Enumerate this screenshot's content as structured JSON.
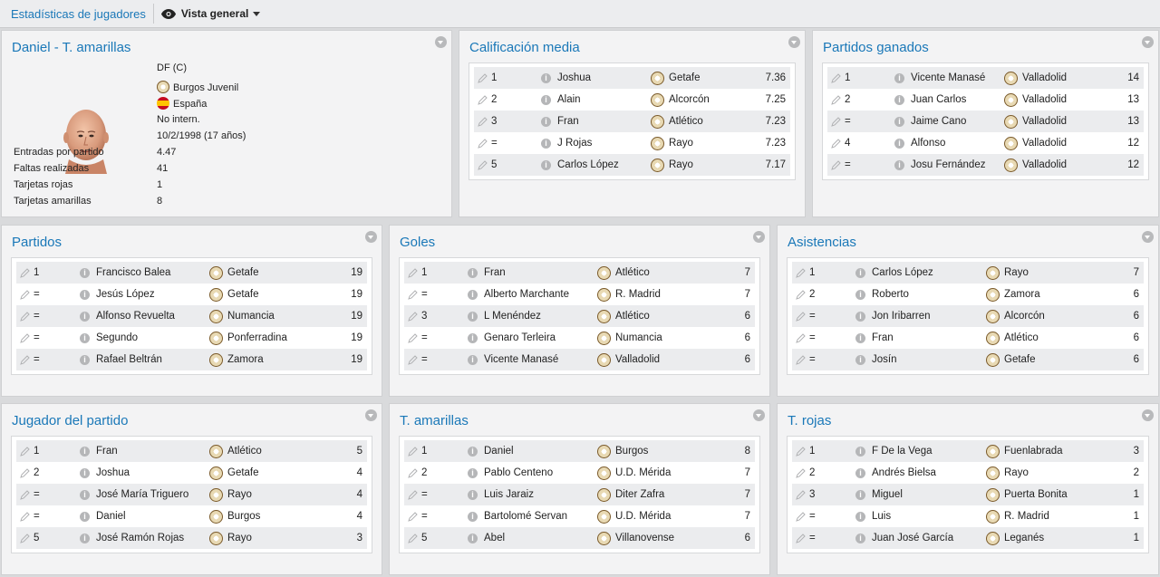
{
  "topbar": {
    "breadcrumb": "Estadísticas de jugadores",
    "view_label": "Vista general"
  },
  "profile": {
    "title": "Daniel - T. amarillas",
    "position": "DF (C)",
    "club": "Burgos Juvenil",
    "nation": "España",
    "intl": "No intern.",
    "dob": "10/2/1998 (17 años)",
    "stats": [
      {
        "label": "Entradas por partido",
        "value": "4.47"
      },
      {
        "label": "Faltas realizadas",
        "value": "41"
      },
      {
        "label": "Tarjetas rojas",
        "value": "1"
      },
      {
        "label": "Tarjetas amarillas",
        "value": "8"
      }
    ]
  },
  "panels": {
    "calificacion": {
      "title": "Calificación media",
      "rows": [
        {
          "rank": "1",
          "player": "Joshua",
          "team": "Getafe",
          "value": "7.36"
        },
        {
          "rank": "2",
          "player": "Alain",
          "team": "Alcorcón",
          "value": "7.25"
        },
        {
          "rank": "3",
          "player": "Fran",
          "team": "Atlético",
          "value": "7.23"
        },
        {
          "rank": "=",
          "player": "J Rojas",
          "team": "Rayo",
          "value": "7.23"
        },
        {
          "rank": "5",
          "player": "Carlos López",
          "team": "Rayo",
          "value": "7.17"
        }
      ]
    },
    "ganados": {
      "title": "Partidos ganados",
      "rows": [
        {
          "rank": "1",
          "player": "Vicente Manasé",
          "team": "Valladolid",
          "value": "14"
        },
        {
          "rank": "2",
          "player": "Juan Carlos",
          "team": "Valladolid",
          "value": "13"
        },
        {
          "rank": "=",
          "player": "Jaime Cano",
          "team": "Valladolid",
          "value": "13"
        },
        {
          "rank": "4",
          "player": "Alfonso",
          "team": "Valladolid",
          "value": "12"
        },
        {
          "rank": "=",
          "player": "Josu Fernández",
          "team": "Valladolid",
          "value": "12"
        }
      ]
    },
    "partidos": {
      "title": "Partidos",
      "rows": [
        {
          "rank": "1",
          "player": "Francisco Balea",
          "team": "Getafe",
          "value": "19"
        },
        {
          "rank": "=",
          "player": "Jesús López",
          "team": "Getafe",
          "value": "19"
        },
        {
          "rank": "=",
          "player": "Alfonso Revuelta",
          "team": "Numancia",
          "value": "19"
        },
        {
          "rank": "=",
          "player": "Segundo",
          "team": "Ponferradina",
          "value": "19"
        },
        {
          "rank": "=",
          "player": "Rafael Beltrán",
          "team": "Zamora",
          "value": "19"
        }
      ]
    },
    "goles": {
      "title": "Goles",
      "rows": [
        {
          "rank": "1",
          "player": "Fran",
          "team": "Atlético",
          "value": "7"
        },
        {
          "rank": "=",
          "player": "Alberto Marchante",
          "team": "R. Madrid",
          "value": "7"
        },
        {
          "rank": "3",
          "player": "L Menéndez",
          "team": "Atlético",
          "value": "6"
        },
        {
          "rank": "=",
          "player": "Genaro Terleira",
          "team": "Numancia",
          "value": "6"
        },
        {
          "rank": "=",
          "player": "Vicente Manasé",
          "team": "Valladolid",
          "value": "6"
        }
      ]
    },
    "asistencias": {
      "title": "Asistencias",
      "rows": [
        {
          "rank": "1",
          "player": "Carlos López",
          "team": "Rayo",
          "value": "7"
        },
        {
          "rank": "2",
          "player": "Roberto",
          "team": "Zamora",
          "value": "6"
        },
        {
          "rank": "=",
          "player": "Jon Iribarren",
          "team": "Alcorcón",
          "value": "6"
        },
        {
          "rank": "=",
          "player": "Fran",
          "team": "Atlético",
          "value": "6"
        },
        {
          "rank": "=",
          "player": "Josín",
          "team": "Getafe",
          "value": "6"
        }
      ]
    },
    "jugador": {
      "title": "Jugador del partido",
      "rows": [
        {
          "rank": "1",
          "player": "Fran",
          "team": "Atlético",
          "value": "5"
        },
        {
          "rank": "2",
          "player": "Joshua",
          "team": "Getafe",
          "value": "4"
        },
        {
          "rank": "=",
          "player": "José María Triguero",
          "team": "Rayo",
          "value": "4"
        },
        {
          "rank": "=",
          "player": "Daniel",
          "team": "Burgos",
          "value": "4"
        },
        {
          "rank": "5",
          "player": "José Ramón Rojas",
          "team": "Rayo",
          "value": "3"
        }
      ]
    },
    "amarillas": {
      "title": "T. amarillas",
      "rows": [
        {
          "rank": "1",
          "player": "Daniel",
          "team": "Burgos",
          "value": "8"
        },
        {
          "rank": "2",
          "player": "Pablo Centeno",
          "team": "U.D. Mérida",
          "value": "7"
        },
        {
          "rank": "=",
          "player": "Luis Jaraiz",
          "team": "Diter Zafra",
          "value": "7"
        },
        {
          "rank": "=",
          "player": "Bartolomé Servan",
          "team": "U.D. Mérida",
          "value": "7"
        },
        {
          "rank": "5",
          "player": "Abel",
          "team": "Villanovense",
          "value": "6"
        }
      ]
    },
    "rojas": {
      "title": "T. rojas",
      "rows": [
        {
          "rank": "1",
          "player": "F De la Vega",
          "team": "Fuenlabrada",
          "value": "3"
        },
        {
          "rank": "2",
          "player": "Andrés Bielsa",
          "team": "Rayo",
          "value": "2"
        },
        {
          "rank": "3",
          "player": "Miguel",
          "team": "Puerta Bonita",
          "value": "1"
        },
        {
          "rank": "=",
          "player": "Luis",
          "team": "R. Madrid",
          "value": "1"
        },
        {
          "rank": "=",
          "player": "Juan José García",
          "team": "Leganés",
          "value": "1"
        }
      ]
    }
  },
  "colors": {
    "accent": "#1a78b8",
    "panel_bg": "#f3f3f4",
    "row_alt": "#ebecee"
  }
}
